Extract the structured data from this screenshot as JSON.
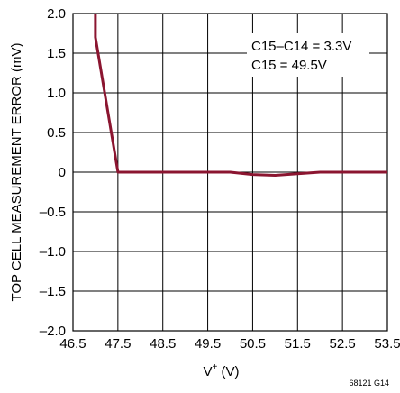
{
  "chart_data": {
    "type": "line",
    "title": "",
    "xlabel": "V",
    "xlabel_sup": "+",
    "xlabel_unit": " (V)",
    "ylabel": "TOP CELL MEASUREMENT ERROR (mV)",
    "xlim": [
      46.5,
      53.5
    ],
    "ylim": [
      -2.0,
      2.0
    ],
    "x_ticks": [
      "46.5",
      "47.5",
      "48.5",
      "49.5",
      "50.5",
      "51.5",
      "52.5",
      "53.5"
    ],
    "y_ticks": [
      "2.0",
      "1.5",
      "1.0",
      "0.5",
      "0",
      "–0.5",
      "–1.0",
      "–1.5",
      "–2.0"
    ],
    "grid": true,
    "annotations": [
      "C15–C14 = 3.3V",
      "C15 = 49.5V"
    ],
    "figure_code": "68121 G14",
    "series": [
      {
        "color": "#8b1530",
        "x": [
          47.0,
          47.0,
          47.5,
          48.0,
          49.0,
          50.0,
          50.5,
          51.0,
          51.5,
          52.0,
          53.0,
          53.5
        ],
        "y": [
          2.0,
          1.7,
          0.0,
          0.0,
          0.0,
          0.0,
          -0.03,
          -0.04,
          -0.02,
          0.0,
          0.0,
          0.0
        ]
      }
    ]
  }
}
